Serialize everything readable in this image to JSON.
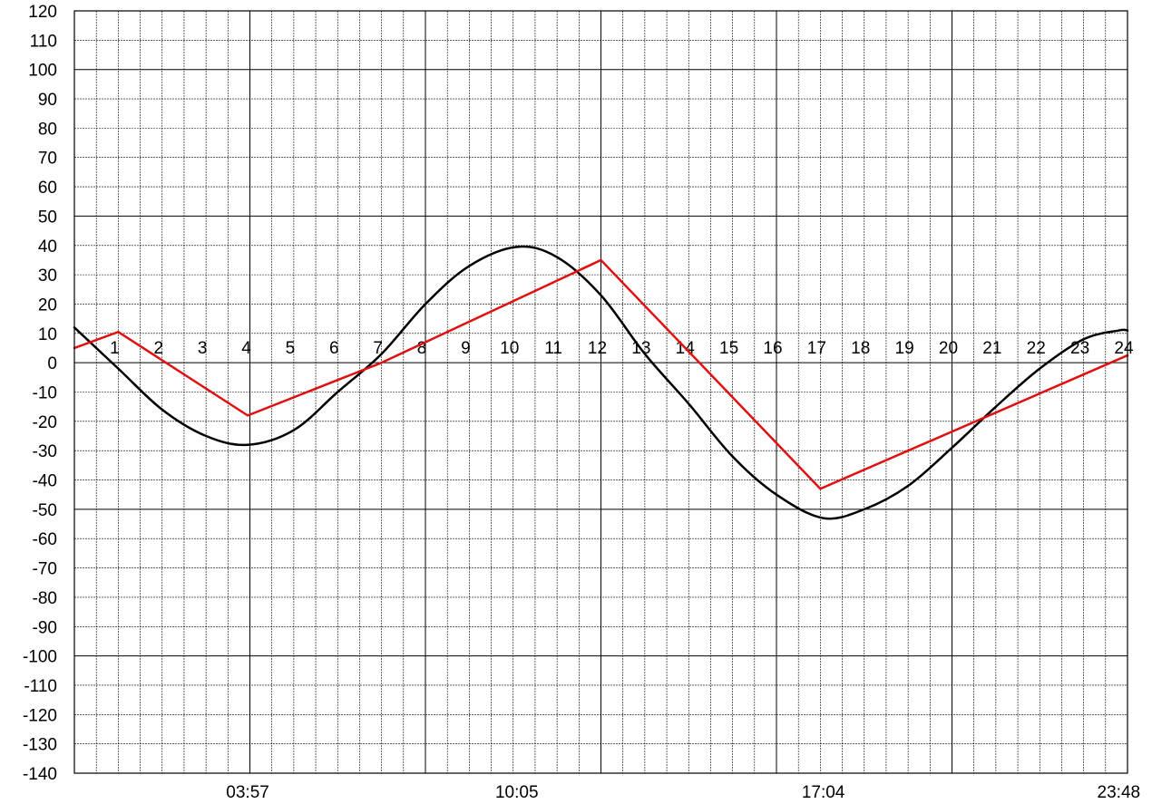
{
  "chart_data": {
    "type": "line",
    "title": "",
    "xlabel": "",
    "ylabel": "",
    "grid": true,
    "ylim": [
      -140,
      120
    ],
    "xlim": [
      0,
      24
    ],
    "y_ticks": [
      "120",
      "110",
      "100",
      "90",
      "80",
      "70",
      "60",
      "50",
      "40",
      "30",
      "20",
      "10",
      "0",
      "-10",
      "-20",
      "-30",
      "-40",
      "-50",
      "-60",
      "-70",
      "-80",
      "-90",
      "-100",
      "-110",
      "-120",
      "-130",
      "-140"
    ],
    "x_ticks": [
      {
        "x": 3.95,
        "label": "03:57"
      },
      {
        "x": 10.083,
        "label": "10:05"
      },
      {
        "x": 17.067,
        "label": "17:04"
      },
      {
        "x": 23.8,
        "label": "23:48"
      }
    ],
    "hour_labels": [
      "1",
      "2",
      "3",
      "4",
      "5",
      "6",
      "7",
      "8",
      "9",
      "10",
      "11",
      "12",
      "13",
      "14",
      "15",
      "16",
      "17",
      "18",
      "19",
      "20",
      "21",
      "22",
      "23",
      "24"
    ],
    "series": [
      {
        "color": "#000000",
        "points": [
          [
            0,
            12
          ],
          [
            1,
            -2
          ],
          [
            2,
            -16
          ],
          [
            3,
            -25
          ],
          [
            3.95,
            -28
          ],
          [
            5,
            -23
          ],
          [
            6,
            -10
          ],
          [
            7,
            3
          ],
          [
            8,
            20
          ],
          [
            9,
            33
          ],
          [
            10.083,
            39.5
          ],
          [
            11,
            36
          ],
          [
            12,
            23
          ],
          [
            13,
            3
          ],
          [
            14,
            -14
          ],
          [
            15,
            -32
          ],
          [
            16,
            -45
          ],
          [
            17.067,
            -53
          ],
          [
            18,
            -50
          ],
          [
            19,
            -42
          ],
          [
            20,
            -29
          ],
          [
            21,
            -15
          ],
          [
            22,
            -2
          ],
          [
            23,
            8
          ],
          [
            23.8,
            11
          ],
          [
            24,
            11
          ]
        ]
      },
      {
        "color": "#e01010",
        "points": [
          [
            0,
            5
          ],
          [
            1,
            10.5
          ],
          [
            3.95,
            -18
          ],
          [
            7,
            0
          ],
          [
            12,
            35
          ],
          [
            17,
            -43
          ],
          [
            24,
            2.5
          ]
        ]
      }
    ]
  }
}
